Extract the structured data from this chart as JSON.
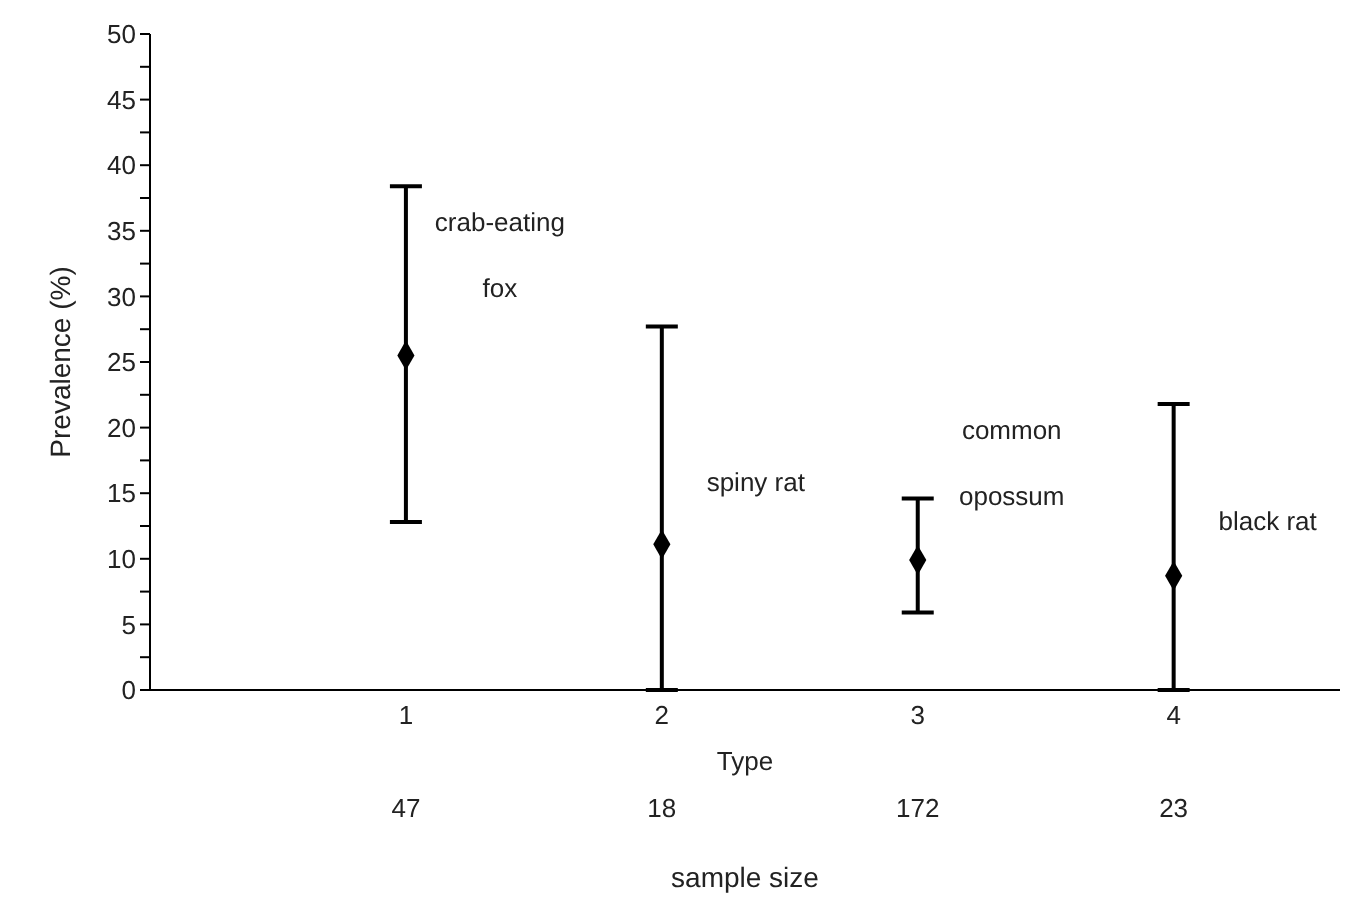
{
  "chart_data": {
    "type": "scatter",
    "xlabel": "Type",
    "ylabel": "Prevalence (%)",
    "categories": [
      "1",
      "2",
      "3",
      "4"
    ],
    "series": [
      {
        "color": "#000000",
        "values": [
          25.5,
          11.1,
          9.9,
          8.7
        ],
        "errors": [
          [
            12.8,
            38.4
          ],
          [
            0,
            27.7
          ],
          [
            5.9,
            14.6
          ],
          [
            0,
            21.8
          ]
        ]
      }
    ],
    "marker": "diamond",
    "grid": false,
    "legend": false,
    "ylim": [
      0,
      50
    ],
    "yticks": [
      0,
      {
        "value": 2.5,
        "label": null
      },
      5,
      {
        "value": 7.5,
        "label": null
      },
      10,
      {
        "value": 12.5,
        "label": null
      },
      15,
      {
        "value": 17.5,
        "label": null
      },
      20,
      {
        "value": 22.5,
        "label": null
      },
      25,
      {
        "value": 27.5,
        "label": null
      },
      30,
      {
        "value": 32.5,
        "label": null
      },
      35,
      {
        "value": 37.5,
        "label": null
      },
      40,
      {
        "value": 42.5,
        "label": null
      },
      45,
      {
        "value": 47.5,
        "label": null
      },
      50
    ],
    "annotations": [
      {
        "text": "crab-eating",
        "x": "1",
        "y": 35.5
      },
      {
        "text": "fox",
        "x": "1",
        "y": 30.5
      },
      {
        "text": "spiny rat",
        "x": "2",
        "y": 15.7
      },
      {
        "text": "common",
        "x": "3",
        "y": 14.6
      },
      {
        "text": "opossum",
        "x": "3",
        "y": 14.6
      },
      {
        "text": "black rat",
        "x": "4",
        "y": 12.7
      },
      "47",
      "18",
      "172",
      "23",
      "sample size"
    ]
  }
}
